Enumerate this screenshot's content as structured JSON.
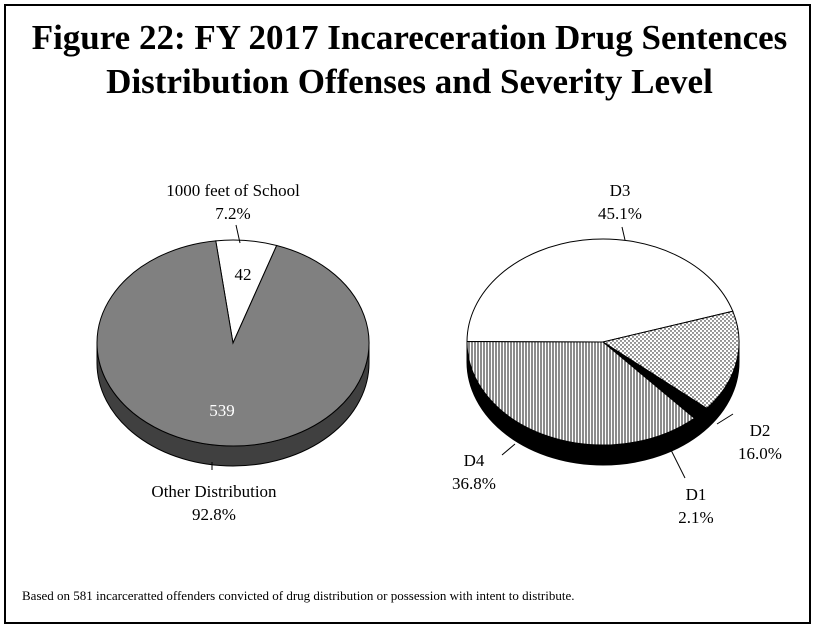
{
  "title": {
    "line1": "Figure 22: FY 2017 Incareceration Drug Sentences",
    "line2": "Distribution Offenses and Severity Level"
  },
  "footnote": "Based on 581 incarceratted offenders convicted of drug distribution or possession with intent to distribute.",
  "chart_data": [
    {
      "type": "pie",
      "style": "3d",
      "slices": [
        {
          "label": "1000 feet of School",
          "percent": "7.2%",
          "count": "42",
          "value": 42,
          "color": "#ffffff"
        },
        {
          "label": "Other Distribution",
          "percent": "92.8%",
          "count": "539",
          "value": 539,
          "color": "#808080"
        }
      ]
    },
    {
      "type": "pie",
      "style": "3d",
      "slices": [
        {
          "label": "D3",
          "percent": "45.1%",
          "value": 45.1,
          "fill": "white"
        },
        {
          "label": "D2",
          "percent": "16.0%",
          "value": 16.0,
          "fill": "dots"
        },
        {
          "label": "D1",
          "percent": "2.1%",
          "value": 2.1,
          "fill": "black"
        },
        {
          "label": "D4",
          "percent": "36.8%",
          "value": 36.8,
          "fill": "vertical-lines"
        }
      ]
    }
  ]
}
